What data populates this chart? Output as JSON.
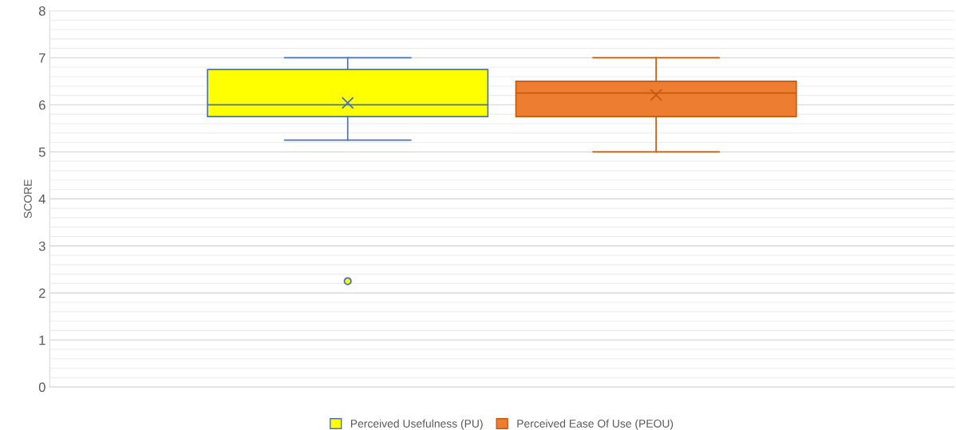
{
  "chart_data": {
    "type": "box",
    "ylabel": "SCORE",
    "categories": [
      null
    ],
    "series": [
      {
        "name": "Perceived Usefulness (PU)",
        "color": "#ffff00",
        "boxes": [
          {
            "low": 5.25,
            "q1": 5.75,
            "median": 6,
            "q3": 6.75,
            "high": 7,
            "mean": 6.04,
            "outliers": [
              2.25
            ]
          }
        ]
      },
      {
        "name": "Perceived Ease Of Use (PEOU)",
        "color": "#ed7d31",
        "boxes": [
          {
            "low": 5,
            "q1": 5.75,
            "median": 6.25,
            "q3": 6.5,
            "high": 7,
            "mean": 6.21
          }
        ]
      }
    ],
    "ylim": [
      0,
      8
    ],
    "yticks": [
      0,
      1,
      2,
      3,
      4,
      5,
      6,
      7,
      8
    ],
    "grid": "y",
    "legend": "bottom",
    "tick_labels": "y"
  }
}
